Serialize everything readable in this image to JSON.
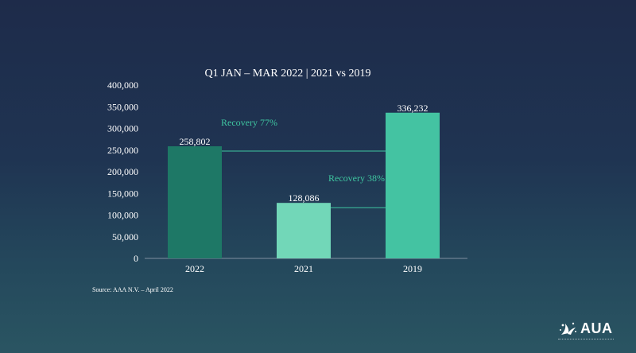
{
  "colors": {
    "bar_2022": "#1e7866",
    "bar_2021": "#72d7b8",
    "bar_2019": "#44c3a2",
    "recovery_line": "#3fc6a0"
  },
  "chart_data": {
    "type": "bar",
    "title": "Q1 JAN – MAR 2022 | 2021 vs 2019",
    "categories": [
      "2022",
      "2021",
      "2019"
    ],
    "values": [
      258802,
      128086,
      336232
    ],
    "value_labels": [
      "258,802",
      "128,086",
      "336,232"
    ],
    "yticks": [
      0,
      50000,
      100000,
      150000,
      200000,
      250000,
      300000,
      350000,
      400000
    ],
    "ytick_labels": [
      "0",
      "50,000",
      "100,000",
      "150,000",
      "200,000",
      "250,000",
      "300,000",
      "350,000",
      "400,000"
    ],
    "ylim": [
      0,
      400000
    ],
    "xlabel": "",
    "ylabel": "",
    "grid": false,
    "annotations": [
      {
        "text": "Recovery 77%",
        "from": "2022",
        "to": "2019"
      },
      {
        "text": "Recovery 38%",
        "from": "2021",
        "to": "2019"
      }
    ]
  },
  "footer": {
    "source": "Source: AAA N.V. – April 2022",
    "logo_text": "AUA",
    "logo_icon": "bird-splash-icon"
  }
}
